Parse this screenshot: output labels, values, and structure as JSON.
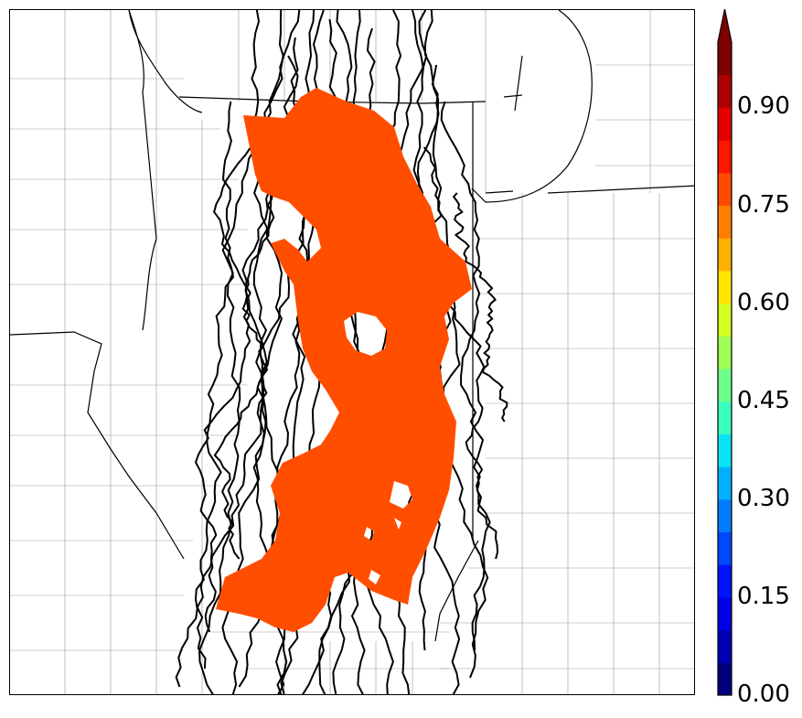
{
  "colorbar": {
    "ticks": [
      "0.00",
      "0.15",
      "0.30",
      "0.45",
      "0.60",
      "0.75",
      "0.90"
    ],
    "tick_values": [
      0.0,
      0.15,
      0.3,
      0.45,
      0.6,
      0.75,
      0.9
    ],
    "range": [
      0.0,
      1.0
    ],
    "extend": "max",
    "colors": [
      "#00007f",
      "#0000b2",
      "#0000e5",
      "#0014ff",
      "#0048ff",
      "#007cff",
      "#00b0ff",
      "#0ce4f3",
      "#39ffbd",
      "#6cff8a",
      "#a0ff56",
      "#d3ff23",
      "#ffe500",
      "#ffb100",
      "#ff7e00",
      "#ff4a00",
      "#ff1600",
      "#e20000",
      "#ad0000",
      "#7f0000"
    ]
  },
  "map": {
    "fill_color": "#ff4e00",
    "fill_value": 0.85,
    "track_color": "#000000"
  }
}
